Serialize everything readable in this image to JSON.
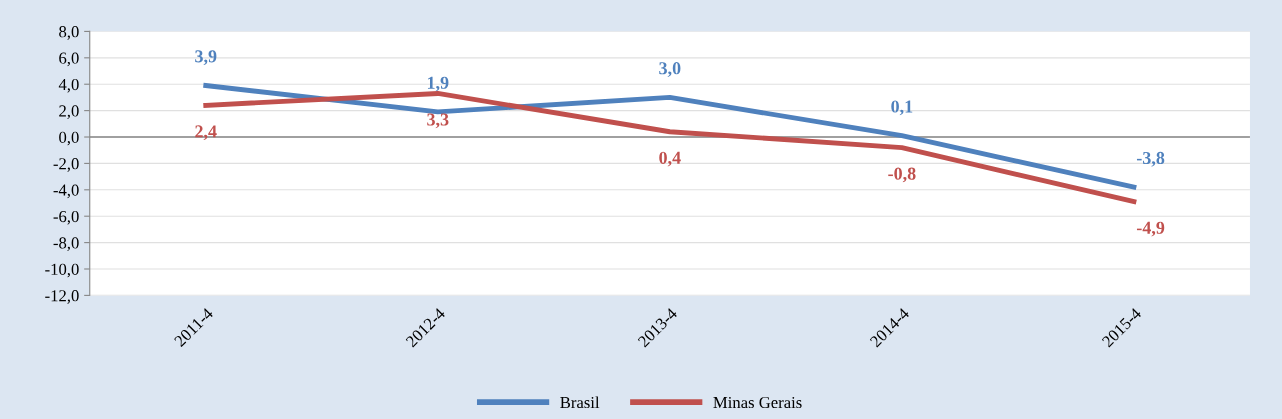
{
  "chart_data": {
    "type": "line",
    "categories": [
      "2011-4",
      "2012-4",
      "2013-4",
      "2014-4",
      "2015-4"
    ],
    "series": [
      {
        "name": "Brasil",
        "color": "#4f81bd",
        "values": [
          3.9,
          1.9,
          3.0,
          0.1,
          -3.8
        ],
        "value_labels": [
          "3,9",
          "1,9",
          "3,0",
          "0,1",
          "-3,8"
        ]
      },
      {
        "name": "Minas Gerais",
        "color": "#c0504d",
        "values": [
          2.4,
          3.3,
          0.4,
          -0.8,
          -4.9
        ],
        "value_labels": [
          "2,4",
          "3,3",
          "0,4",
          "-0,8",
          "-4,9"
        ]
      }
    ],
    "ylim": [
      -12,
      8
    ],
    "yticks": [
      {
        "value": 8,
        "label": "8,0"
      },
      {
        "value": 6,
        "label": "6,0"
      },
      {
        "value": 4,
        "label": "4,0"
      },
      {
        "value": 2,
        "label": "2,0"
      },
      {
        "value": 0,
        "label": "0,0"
      },
      {
        "value": -2,
        "label": "-2,0"
      },
      {
        "value": -4,
        "label": "-4,0"
      },
      {
        "value": -6,
        "label": "-6,0"
      },
      {
        "value": -8,
        "label": "-8,0"
      },
      {
        "value": -10,
        "label": "-10,0"
      },
      {
        "value": -12,
        "label": "-12,0"
      }
    ],
    "ref_lines": [
      {
        "axis": "y",
        "value": 0,
        "color": "#868686"
      }
    ],
    "grid": "y",
    "legend": "bottom",
    "marker": "none",
    "line_style": "solid"
  }
}
